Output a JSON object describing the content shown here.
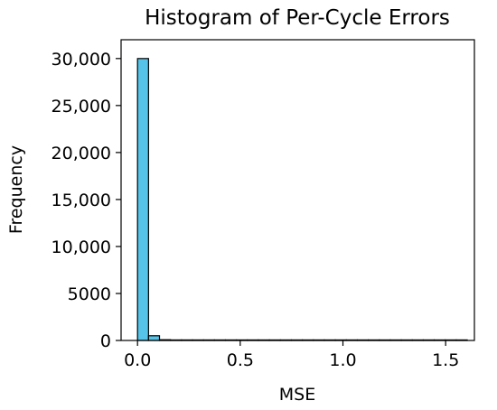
{
  "chart_data": {
    "type": "bar",
    "title": "Histogram of Per-Cycle Errors",
    "xlabel": "MSE",
    "ylabel": "Frequency",
    "xlim": [
      -0.08,
      1.64
    ],
    "ylim": [
      0,
      32000
    ],
    "x_ticks": [
      {
        "value": 0.0,
        "label": "0.0"
      },
      {
        "value": 0.5,
        "label": "0.5"
      },
      {
        "value": 1.0,
        "label": "1.0"
      },
      {
        "value": 1.5,
        "label": "1.5"
      }
    ],
    "y_ticks": [
      {
        "value": 0,
        "label": "0"
      },
      {
        "value": 5000,
        "label": "5000"
      },
      {
        "value": 10000,
        "label": "10,000"
      },
      {
        "value": 15000,
        "label": "15,000"
      },
      {
        "value": 20000,
        "label": "20,000"
      },
      {
        "value": 25000,
        "label": "25,000"
      },
      {
        "value": 30000,
        "label": "30,000"
      }
    ],
    "bin_width": 0.0535,
    "bins": [
      {
        "start": 0.0,
        "count": 30000
      },
      {
        "start": 0.0535,
        "count": 500
      },
      {
        "start": 0.107,
        "count": 80
      },
      {
        "start": 0.1605,
        "count": 40
      },
      {
        "start": 0.214,
        "count": 25
      },
      {
        "start": 0.2675,
        "count": 12
      },
      {
        "start": 0.321,
        "count": 6
      },
      {
        "start": 0.3745,
        "count": 4
      },
      {
        "start": 0.428,
        "count": 3
      },
      {
        "start": 0.4815,
        "count": 2
      },
      {
        "start": 0.535,
        "count": 2
      },
      {
        "start": 0.5885,
        "count": 1
      },
      {
        "start": 0.642,
        "count": 1
      },
      {
        "start": 0.6955,
        "count": 1
      },
      {
        "start": 0.749,
        "count": 1
      },
      {
        "start": 0.8025,
        "count": 0
      },
      {
        "start": 0.856,
        "count": 1
      },
      {
        "start": 0.9095,
        "count": 0
      },
      {
        "start": 0.963,
        "count": 1
      },
      {
        "start": 1.0165,
        "count": 0
      },
      {
        "start": 1.07,
        "count": 0
      },
      {
        "start": 1.1235,
        "count": 1
      },
      {
        "start": 1.177,
        "count": 0
      },
      {
        "start": 1.2305,
        "count": 0
      },
      {
        "start": 1.284,
        "count": 0
      },
      {
        "start": 1.3375,
        "count": 0
      },
      {
        "start": 1.391,
        "count": 0
      },
      {
        "start": 1.4445,
        "count": 0
      },
      {
        "start": 1.498,
        "count": 0
      },
      {
        "start": 1.5515,
        "count": 1
      }
    ],
    "bar_color": "#55c4e8",
    "edge_color": "#000000",
    "grid": false,
    "legend": "none"
  }
}
